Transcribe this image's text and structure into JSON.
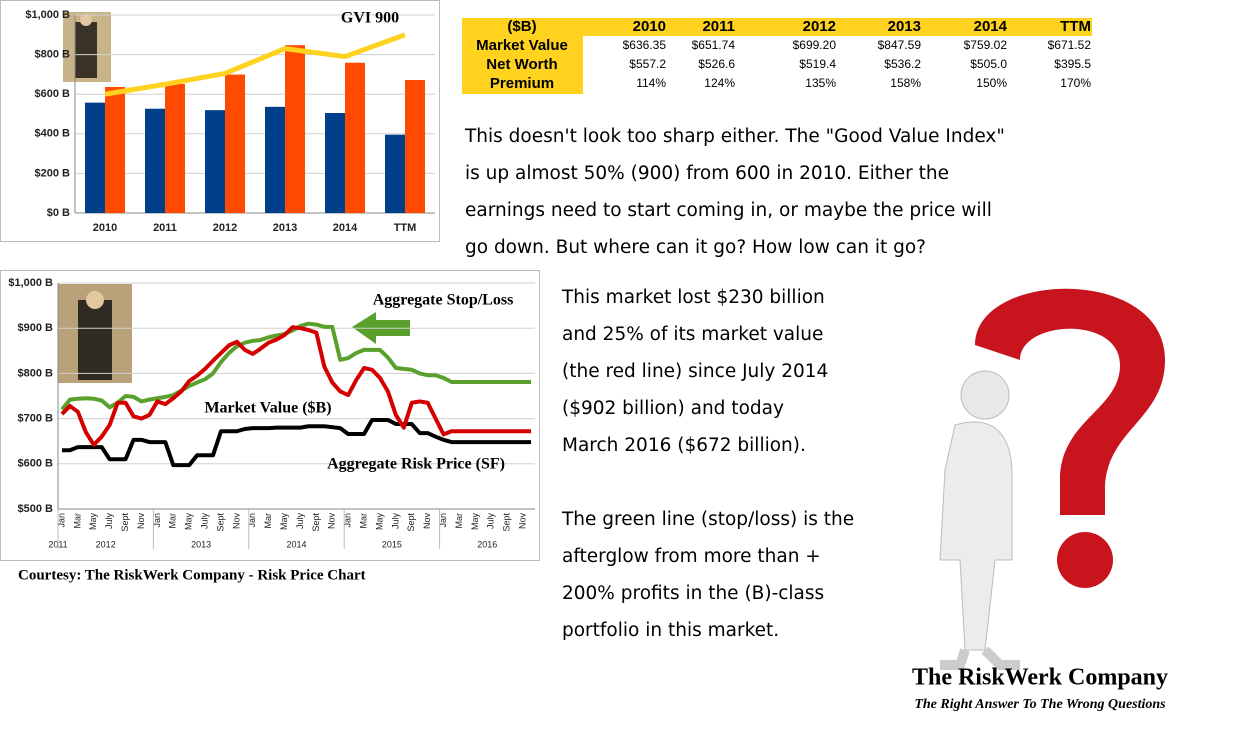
{
  "chart_data": [
    {
      "type": "combo",
      "categories": [
        "2010",
        "2011",
        "2012",
        "2013",
        "2014",
        "TTM"
      ],
      "series": [
        {
          "type": "bar",
          "color": "#003f8a",
          "values": [
            557.2,
            526.6,
            519.4,
            536.2,
            505.0,
            395.5
          ]
        },
        {
          "type": "bar",
          "color": "#ff4a00",
          "values": [
            636.35,
            651.74,
            699.2,
            847.59,
            759.02,
            671.52
          ]
        },
        {
          "type": "line",
          "color": "#ffd21f",
          "values": [
            600,
            650,
            705,
            830,
            790,
            900
          ]
        }
      ],
      "annotations": [
        "GVI 900"
      ],
      "ylim": [
        0,
        1000
      ],
      "yticks": [
        {
          "value": 0,
          "label": "$0 B"
        },
        {
          "value": 200,
          "label": "$200 B"
        },
        {
          "value": 400,
          "label": "$400 B"
        },
        {
          "value": 600,
          "label": "$600 B"
        },
        {
          "value": 800,
          "label": "$800 B"
        },
        {
          "value": 1000,
          "label": "$1,000 B"
        }
      ],
      "grid": true
    },
    {
      "type": "line",
      "categories": [
        "Jan",
        null,
        "Mar",
        null,
        "May",
        null,
        "July",
        null,
        "Sept",
        null,
        "Nov",
        null,
        "Jan",
        null,
        "Mar",
        null,
        "May",
        null,
        "July",
        null,
        "Sept",
        null,
        "Nov",
        null,
        "Jan",
        null,
        "Mar",
        null,
        "May",
        null,
        "July",
        null,
        "Sept",
        null,
        "Nov",
        null,
        "Jan",
        null,
        "Mar",
        null,
        "May",
        null,
        "July",
        null,
        "Sept",
        null,
        "Nov",
        null,
        "Jan",
        null,
        "Mar",
        null,
        "May",
        null,
        "July",
        null,
        "Sept",
        null,
        "Nov",
        null
      ],
      "x_group_labels": [
        "2011",
        "2012",
        "2013",
        "2014",
        "2015",
        "2016"
      ],
      "series": [
        {
          "color": "#5aa02c",
          "values": [
            720,
            742,
            744,
            745,
            744,
            740,
            725,
            735,
            750,
            748,
            738,
            742,
            745,
            748,
            752,
            762,
            772,
            780,
            787,
            800,
            825,
            845,
            860,
            868,
            872,
            874,
            880,
            884,
            887,
            895,
            905,
            910,
            908,
            903,
            903,
            830,
            834,
            845,
            852,
            852,
            852,
            835,
            812,
            810,
            808,
            800,
            796,
            796,
            790,
            781,
            781,
            781,
            781,
            781,
            781,
            781,
            781,
            781,
            781,
            781
          ]
        },
        {
          "color": "#000000",
          "values": [
            630,
            630,
            637,
            637,
            637,
            637,
            610,
            610,
            610,
            653,
            653,
            648,
            648,
            648,
            597,
            597,
            597,
            619,
            619,
            619,
            672,
            672,
            672,
            677,
            679,
            679,
            679,
            680,
            680,
            680,
            680,
            683,
            683,
            683,
            681,
            679,
            666,
            666,
            666,
            697,
            697,
            697,
            688,
            688,
            688,
            668,
            668,
            660,
            653,
            648,
            648,
            648,
            648,
            648,
            648,
            648,
            648,
            648,
            648,
            648
          ]
        },
        {
          "color": "#d40000",
          "values": [
            710,
            728,
            715,
            670,
            642,
            660,
            686,
            735,
            735,
            705,
            700,
            708,
            738,
            732,
            745,
            760,
            783,
            795,
            810,
            828,
            845,
            862,
            870,
            852,
            843,
            855,
            868,
            875,
            885,
            902,
            900,
            896,
            890,
            815,
            780,
            760,
            752,
            785,
            812,
            808,
            790,
            760,
            708,
            680,
            735,
            738,
            735,
            700,
            665,
            672,
            672,
            672,
            672,
            672,
            672,
            672,
            672,
            672,
            672,
            672
          ]
        }
      ],
      "annotations": [
        "Aggregate Stop/Loss",
        "Market Value ($B)",
        "Aggregate Risk Price (SF)"
      ],
      "caption": "Courtesy: The RiskWerk Company - Risk Price Chart",
      "ylim": [
        500,
        1000
      ],
      "yticks": [
        {
          "value": 500,
          "label": "$500 B"
        },
        {
          "value": 600,
          "label": "$600 B"
        },
        {
          "value": 700,
          "label": "$700 B"
        },
        {
          "value": 800,
          "label": "$800 B"
        },
        {
          "value": 900,
          "label": "$900 B"
        },
        {
          "value": 1000,
          "label": "$1,000 B"
        }
      ],
      "grid": true
    }
  ],
  "table": {
    "header": [
      "($B)",
      "2010",
      "2011",
      "2012",
      "2013",
      "2014",
      "TTM"
    ],
    "rows": [
      [
        "Market Value",
        "$636.35",
        "$651.74",
        "$699.20",
        "$847.59",
        "$759.02",
        "$671.52"
      ],
      [
        "Net Worth",
        "$557.2",
        "$526.6",
        "$519.4",
        "$536.2",
        "$505.0",
        "$395.5"
      ],
      [
        "Premium",
        "114%",
        "124%",
        "135%",
        "158%",
        "150%",
        "170%"
      ]
    ]
  },
  "text_blocks": [
    {
      "lines": [
        "This doesn't look too sharp either. The \"Good Value Index\"",
        "is up almost 50% (900) from 600 in 2010. Either the",
        "earnings need to start coming in, or maybe the price will",
        "go down. But where can it go? How low can it go?"
      ]
    },
    {
      "lines": [
        "This market lost $230 billion",
        "and 25% of its market value",
        "(the red line) since July 2014",
        "($902 billion) and today",
        "March 2016 ($672 billion)."
      ]
    },
    {
      "lines": [
        "The green line (stop/loss) is the",
        "afterglow from more than +",
        "200% profits in the (B)-class",
        "portfolio in this market."
      ]
    }
  ],
  "logo": {
    "name": "The RiskWerk Company",
    "tagline": "The Right Answer To The Wrong Questions"
  }
}
